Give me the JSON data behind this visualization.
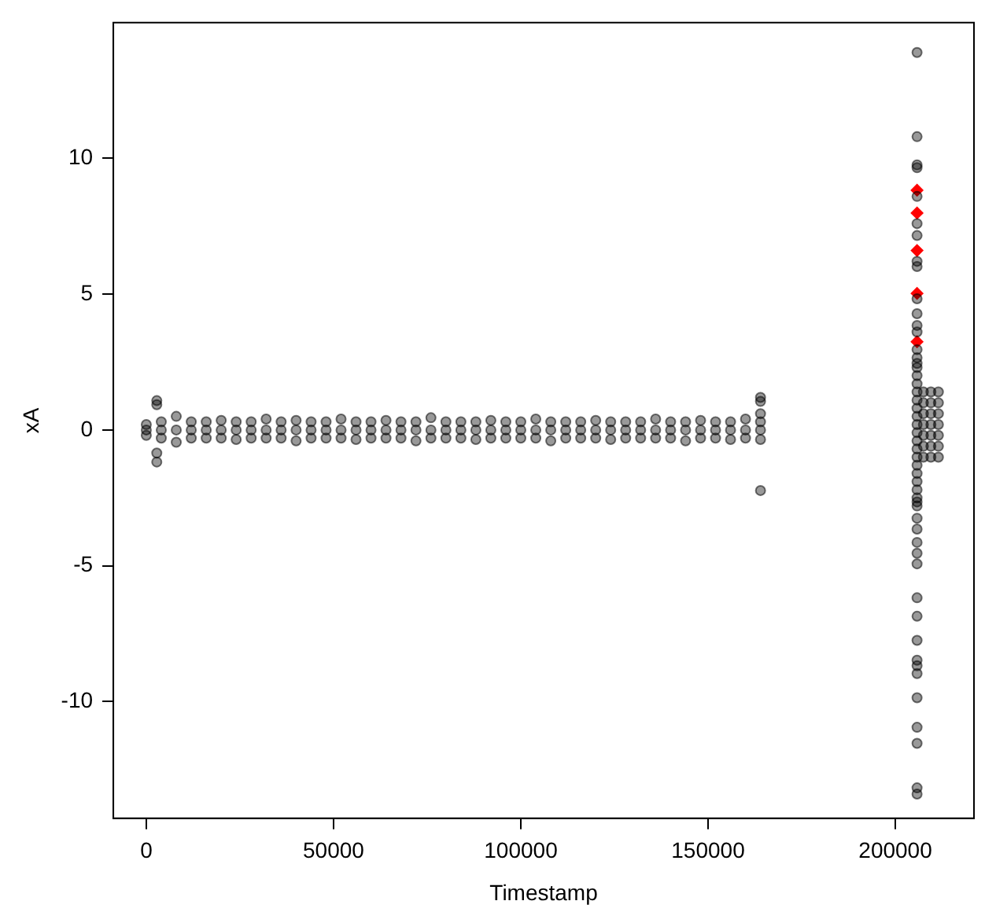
{
  "chart_data": {
    "type": "scatter",
    "xlabel": "Timestamp",
    "ylabel": "xA",
    "xlim": [
      -8800,
      221000
    ],
    "ylim": [
      -14.3,
      15
    ],
    "xticks": [
      0,
      50000,
      100000,
      150000,
      200000
    ],
    "yticks": [
      -10,
      -5,
      0,
      5,
      10
    ],
    "series": [
      {
        "color": "#000000",
        "marker": "circle",
        "x": [
          0,
          4000,
          8000,
          12000,
          16000,
          20000,
          24000,
          28000,
          32000,
          36000,
          40000,
          44000,
          48000,
          52000,
          56000,
          60000,
          64000,
          68000,
          72000,
          76000,
          80000,
          84000,
          88000,
          92000,
          96000,
          100000,
          104000,
          108000,
          112000,
          116000,
          120000,
          124000,
          128000,
          132000,
          136000,
          140000,
          144000,
          148000,
          152000,
          156000,
          160000,
          164000,
          0,
          4000,
          8000,
          12000,
          16000,
          20000,
          24000,
          28000,
          32000,
          36000,
          40000,
          44000,
          48000,
          52000,
          56000,
          60000,
          64000,
          68000,
          72000,
          76000,
          80000,
          84000,
          88000,
          92000,
          96000,
          100000,
          104000,
          108000,
          112000,
          116000,
          120000,
          124000,
          128000,
          132000,
          136000,
          140000,
          144000,
          148000,
          152000,
          156000,
          160000,
          164000,
          0,
          4000,
          8000,
          12000,
          16000,
          20000,
          24000,
          28000,
          32000,
          36000,
          40000,
          44000,
          48000,
          52000,
          56000,
          60000,
          64000,
          68000,
          72000,
          76000,
          80000,
          84000,
          88000,
          92000,
          96000,
          100000,
          104000,
          108000,
          112000,
          116000,
          120000,
          124000,
          128000,
          132000,
          136000,
          140000,
          144000,
          148000,
          152000,
          156000,
          160000,
          164000,
          2800,
          2800,
          2800,
          2800,
          164000,
          164000,
          164000,
          164000,
          205800,
          205800,
          205800,
          205800,
          205800,
          205800,
          205800,
          205800,
          205800,
          205800,
          205800,
          205800,
          205800,
          205800,
          205800,
          205800,
          205800,
          205800,
          205800,
          205800,
          205800,
          205800,
          205800,
          205800,
          205800,
          205800,
          205800,
          205800,
          205800,
          205800,
          205800,
          205800,
          205800,
          205800,
          205800,
          205800,
          205800,
          205800,
          205800,
          205800,
          205800,
          205800,
          205800,
          205800,
          205800,
          205800,
          205800,
          205800,
          205800,
          205800,
          205800,
          207500,
          207500,
          207500,
          207500,
          207500,
          207500,
          207500,
          209500,
          209500,
          209500,
          209500,
          209500,
          209500,
          209500,
          211500,
          211500,
          211500,
          211500,
          211500,
          211500,
          211500
        ],
        "values": [
          0.2,
          0.3,
          0.5,
          0.3,
          0.3,
          0.35,
          0.3,
          0.3,
          0.4,
          0.3,
          0.35,
          0.3,
          0.3,
          0.4,
          0.3,
          0.3,
          0.35,
          0.3,
          0.3,
          0.45,
          0.3,
          0.3,
          0.3,
          0.35,
          0.3,
          0.3,
          0.4,
          0.3,
          0.3,
          0.3,
          0.35,
          0.3,
          0.3,
          0.3,
          0.4,
          0.3,
          0.3,
          0.35,
          0.3,
          0.3,
          0.4,
          0.3,
          0,
          0,
          0,
          0,
          0,
          0,
          0,
          0,
          0,
          0,
          0,
          0,
          0,
          0,
          0,
          0,
          0,
          0,
          0,
          0,
          0,
          0,
          0,
          0,
          0,
          0,
          0,
          0,
          0,
          0,
          0,
          0,
          0,
          0,
          0,
          0,
          0,
          0,
          0,
          0,
          0,
          0,
          -0.2,
          -0.3,
          -0.45,
          -0.3,
          -0.3,
          -0.3,
          -0.35,
          -0.3,
          -0.3,
          -0.3,
          -0.4,
          -0.3,
          -0.3,
          -0.3,
          -0.35,
          -0.3,
          -0.3,
          -0.3,
          -0.4,
          -0.3,
          -0.3,
          -0.3,
          -0.35,
          -0.3,
          -0.3,
          -0.3,
          -0.3,
          -0.4,
          -0.3,
          -0.3,
          -0.3,
          -0.35,
          -0.3,
          -0.3,
          -0.3,
          -0.3,
          -0.4,
          -0.3,
          -0.3,
          -0.35,
          -0.3,
          -0.35,
          1.08,
          0.93,
          -0.85,
          -1.18,
          1.2,
          1.05,
          0.6,
          -2.23,
          13.9,
          10.8,
          9.76,
          9.66,
          8.6,
          7.6,
          7.16,
          6.21,
          6.02,
          4.83,
          4.28,
          3.85,
          3.61,
          2.96,
          2.66,
          2.45,
          -2.65,
          -3.25,
          -3.65,
          -4.14,
          -4.54,
          -4.93,
          -6.18,
          -6.86,
          -7.75,
          -8.48,
          -8.68,
          -8.97,
          -9.86,
          -10.95,
          -11.54,
          -13.18,
          -13.41,
          2.3,
          2.0,
          1.7,
          1.4,
          1.1,
          0.8,
          0.5,
          0.2,
          -0.1,
          -0.4,
          -0.7,
          -1.0,
          -1.3,
          -1.6,
          -1.9,
          -2.2,
          -2.5,
          -2.8,
          1.4,
          1.0,
          0.6,
          0.2,
          -0.2,
          -0.6,
          -1.0,
          1.4,
          1.0,
          0.6,
          0.2,
          -0.2,
          -0.6,
          -1.0,
          1.4,
          1.0,
          0.6,
          0.2,
          -0.2,
          -0.6,
          -1.0
        ]
      },
      {
        "color": "#ff0000",
        "marker": "diamond",
        "x": [
          205800,
          205800,
          205800,
          205800,
          205800
        ],
        "values": [
          8.83,
          7.99,
          6.61,
          5.03,
          3.25
        ]
      }
    ]
  }
}
